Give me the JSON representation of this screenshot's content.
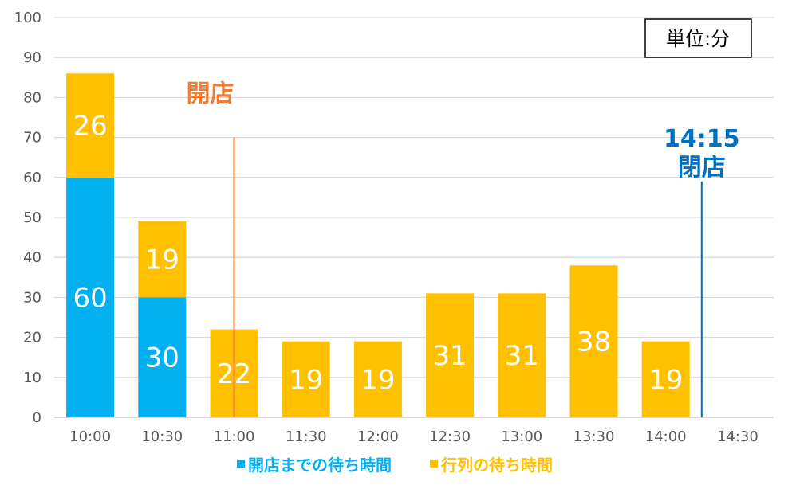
{
  "chart_data": {
    "type": "bar",
    "stacked": true,
    "categories": [
      "10:00",
      "10:30",
      "11:00",
      "11:30",
      "12:00",
      "12:30",
      "13:00",
      "13:30",
      "14:00",
      "14:30"
    ],
    "series": [
      {
        "name": "開店までの待ち時間",
        "color": "#00B0F0",
        "label_color": "#FFFFFF",
        "values": [
          60,
          30,
          0,
          0,
          0,
          0,
          0,
          0,
          0,
          0
        ]
      },
      {
        "name": "行列の待ち時間",
        "color": "#FFC000",
        "label_color": "#FFFFFF",
        "values": [
          26,
          19,
          22,
          19,
          19,
          31,
          31,
          38,
          19,
          0
        ]
      }
    ],
    "ylim": [
      0,
      100
    ],
    "yticks": [
      0,
      10,
      20,
      30,
      40,
      50,
      60,
      70,
      80,
      90,
      100
    ],
    "grid": true,
    "grid_color": "#D9D9D9",
    "axis_label_color": "#595959",
    "legend_position": "bottom",
    "unit_box": "単位:分",
    "annotations": [
      {
        "type": "vline",
        "x": "11:00",
        "y_top": 70,
        "label": "開店",
        "color": "#ED7D31"
      },
      {
        "type": "vline",
        "x": "14:15",
        "y_top": 59,
        "label_time": "14:15",
        "label": "閉店",
        "color": "#0070C0"
      }
    ]
  }
}
